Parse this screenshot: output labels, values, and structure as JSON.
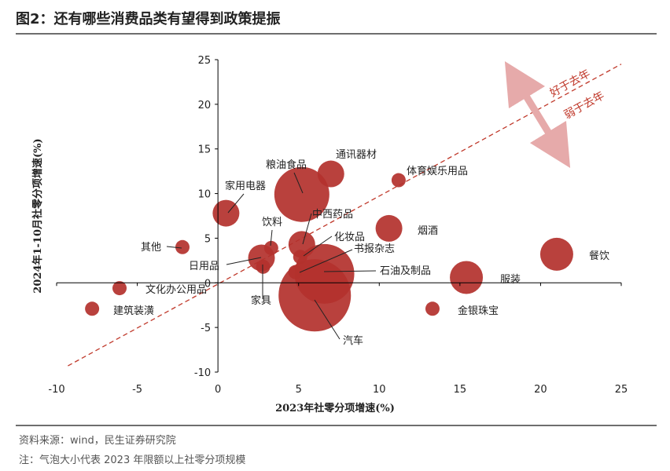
{
  "header": {
    "title": "图2：还有哪些消费品类有望得到政策提振"
  },
  "footer": {
    "source": "资料来源：wind，民生证券研究院",
    "note": "注：气泡大小代表 2023 年限额以上社零分项规模"
  },
  "annotations": {
    "above": "好于去年",
    "below": "弱于去年"
  },
  "colors": {
    "bubble": "#b3312c",
    "dash": "#c0392b",
    "arrow": "#e6aaaa",
    "axis": "#000000"
  },
  "chart_data": {
    "type": "scatter",
    "title": "",
    "xlabel": "2023年社零分项增速(%)",
    "ylabel": "2024年1-10月社零分项增速(%)",
    "xlim": [
      -10,
      25
    ],
    "ylim": [
      -10,
      25
    ],
    "xticks": [
      "-10",
      "-5",
      "0",
      "5",
      "10",
      "15",
      "20",
      "25"
    ],
    "yticks": [
      "25",
      "20",
      "15",
      "10",
      "5",
      "0",
      "-5",
      "-10"
    ],
    "grid": false,
    "reference_line": "y = x (dashed)",
    "points": [
      {
        "label": "通讯器材",
        "x": 7.0,
        "y": 12.2,
        "size": 2
      },
      {
        "label": "粮油食品",
        "x": 5.2,
        "y": 9.9,
        "size": 4
      },
      {
        "label": "体育娱乐用品",
        "x": 11.2,
        "y": 11.5,
        "size": 1
      },
      {
        "label": "家用电器",
        "x": 0.5,
        "y": 7.8,
        "size": 2
      },
      {
        "label": "饮料",
        "x": 3.3,
        "y": 3.9,
        "size": 1
      },
      {
        "label": "中西药品",
        "x": 5.2,
        "y": 4.3,
        "size": 2
      },
      {
        "label": "烟酒",
        "x": 10.6,
        "y": 6.1,
        "size": 2
      },
      {
        "label": "其他",
        "x": -2.2,
        "y": 4.0,
        "size": 1
      },
      {
        "label": "化妆品",
        "x": 5.1,
        "y": 2.9,
        "size": 1
      },
      {
        "label": "书报杂志",
        "x": 4.8,
        "y": 1.2,
        "size": 1
      },
      {
        "label": "日用品",
        "x": 2.7,
        "y": 2.8,
        "size": 2
      },
      {
        "label": "石油及制品",
        "x": 6.6,
        "y": 1.0,
        "size": 5
      },
      {
        "label": "餐饮",
        "x": 21.0,
        "y": 3.2,
        "size": 3
      },
      {
        "label": "服装",
        "x": 15.4,
        "y": 0.6,
        "size": 3
      },
      {
        "label": "文化办公用品",
        "x": -6.1,
        "y": -0.6,
        "size": 1
      },
      {
        "label": "家具",
        "x": 2.8,
        "y": 1.8,
        "size": 1
      },
      {
        "label": "建筑装潢",
        "x": -7.8,
        "y": -2.9,
        "size": 1
      },
      {
        "label": "金银珠宝",
        "x": 13.3,
        "y": -2.9,
        "size": 1
      },
      {
        "label": "汽车",
        "x": 6.0,
        "y": -1.4,
        "size": 6
      }
    ]
  }
}
